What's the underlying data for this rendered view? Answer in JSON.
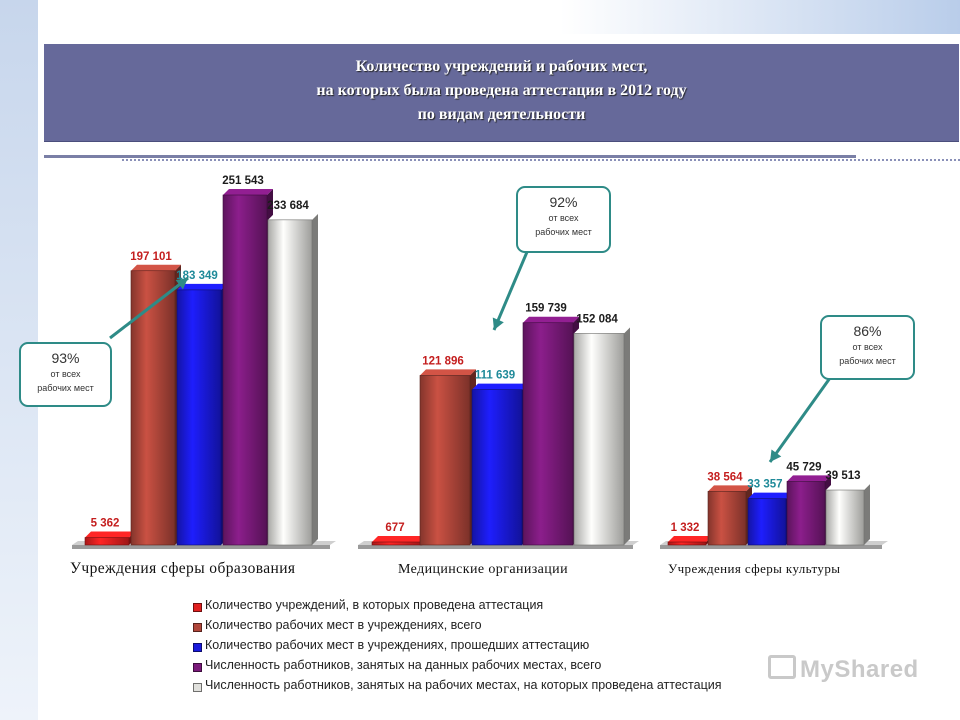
{
  "title": {
    "line1": "Количество учреждений и рабочих мест,",
    "line2": "на которых была проведена аттестация  в 2012 году",
    "line3": "по видам деятельности"
  },
  "colors": {
    "series": [
      "#e02020",
      "#b0463a",
      "#1a1adc",
      "#7a1a7a",
      "#e0e0dc"
    ],
    "label": [
      "#c41e1e",
      "#c41e1e",
      "#1f8a99",
      "#1c1c1c",
      "#1c1c1c"
    ],
    "callout_border": "#2e8b87",
    "title_bg": "#66699a"
  },
  "chart_data": {
    "type": "bar",
    "categories": [
      "Учреждения сферы образования",
      "Медицинские организации",
      "Учреждения сферы культуры"
    ],
    "series": [
      {
        "name": "Количество учреждений, в которых проведена аттестация",
        "values": [
          5362,
          677,
          1332
        ],
        "labels": [
          "5 362",
          "677",
          "1 332"
        ]
      },
      {
        "name": "Количество рабочих мест в учреждениях, всего",
        "values": [
          197101,
          121896,
          38564
        ],
        "labels": [
          "197 101",
          "121 896",
          "38 564"
        ]
      },
      {
        "name": "Количество рабочих мест в учреждениях, прошедших аттестацию",
        "values": [
          183349,
          111639,
          33357
        ],
        "labels": [
          "183 349",
          "111 639",
          "33 357"
        ]
      },
      {
        "name": "Численность работников, занятых на данных рабочих местах, всего",
        "values": [
          251543,
          159739,
          45729
        ],
        "labels": [
          "251 543",
          "159 739",
          "45 729"
        ]
      },
      {
        "name": "Численность работников, занятых на рабочих местах, на которых проведена аттестация",
        "values": [
          233684,
          152084,
          39513
        ],
        "labels": [
          "233 684",
          "152 084",
          "39 513"
        ]
      }
    ],
    "legend_position": "bottom",
    "grid": false
  },
  "callouts": [
    {
      "pct": "93%",
      "sub1": "от всех",
      "sub2": "рабочих мест"
    },
    {
      "pct": "92%",
      "sub1": "от всех",
      "sub2": "рабочих мест"
    },
    {
      "pct": "86%",
      "sub1": "от всех",
      "sub2": "рабочих мест"
    }
  ],
  "watermark": "MyShared"
}
